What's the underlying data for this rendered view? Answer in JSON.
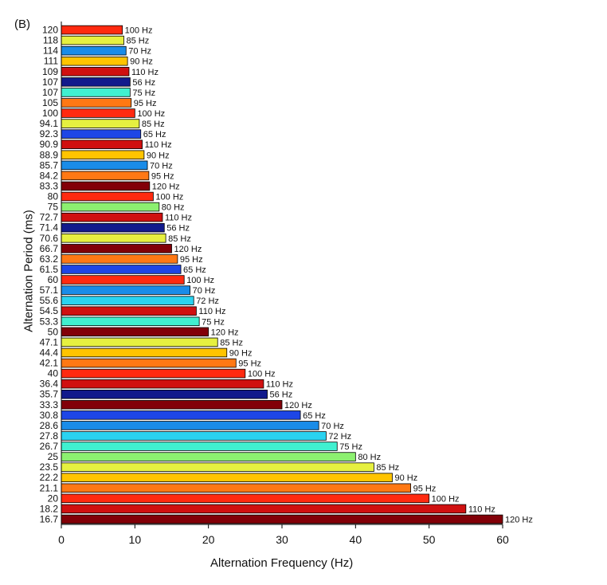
{
  "panel_label": "(B)",
  "chart_data": {
    "type": "bar",
    "orientation": "horizontal",
    "xlabel": "Alternation Frequency (Hz)",
    "ylabel": "Alternation Period (ms)",
    "xlim": [
      0,
      60
    ],
    "xticks": [
      "0",
      "10",
      "20",
      "30",
      "40",
      "50",
      "60"
    ],
    "grid": false,
    "colors": {
      "56 Hz": "#121a8c",
      "65 Hz": "#1e46e6",
      "70 Hz": "#1a8ce8",
      "72 Hz": "#2ad2f0",
      "75 Hz": "#40f0d0",
      "80 Hz": "#8cf070",
      "85 Hz": "#e6f040",
      "90 Hz": "#ffc400",
      "95 Hz": "#ff7814",
      "100 Hz": "#ff2a10",
      "110 Hz": "#d01010",
      "120 Hz": "#820008"
    },
    "bars": [
      {
        "period": "120",
        "frequency": 8.3,
        "label": "100 Hz"
      },
      {
        "period": "118",
        "frequency": 8.5,
        "label": "85 Hz"
      },
      {
        "period": "114",
        "frequency": 8.8,
        "label": "70 Hz"
      },
      {
        "period": "111",
        "frequency": 9.0,
        "label": "90 Hz"
      },
      {
        "period": "109",
        "frequency": 9.2,
        "label": "110 Hz"
      },
      {
        "period": "107",
        "frequency": 9.35,
        "label": "56 Hz"
      },
      {
        "period": "107",
        "frequency": 9.35,
        "label": "75 Hz"
      },
      {
        "period": "105",
        "frequency": 9.5,
        "label": "95 Hz"
      },
      {
        "period": "100",
        "frequency": 10.0,
        "label": "100 Hz"
      },
      {
        "period": "94.1",
        "frequency": 10.6,
        "label": "85 Hz"
      },
      {
        "period": "92.3",
        "frequency": 10.8,
        "label": "65 Hz"
      },
      {
        "period": "90.9",
        "frequency": 11.0,
        "label": "110 Hz"
      },
      {
        "period": "88.9",
        "frequency": 11.25,
        "label": "90 Hz"
      },
      {
        "period": "85.7",
        "frequency": 11.7,
        "label": "70 Hz"
      },
      {
        "period": "84.2",
        "frequency": 11.9,
        "label": "95 Hz"
      },
      {
        "period": "83.3",
        "frequency": 12.0,
        "label": "120 Hz"
      },
      {
        "period": "80",
        "frequency": 12.5,
        "label": "100 Hz"
      },
      {
        "period": "75",
        "frequency": 13.3,
        "label": "80 Hz"
      },
      {
        "period": "72.7",
        "frequency": 13.75,
        "label": "110 Hz"
      },
      {
        "period": "71.4",
        "frequency": 14.0,
        "label": "56 Hz"
      },
      {
        "period": "70.6",
        "frequency": 14.2,
        "label": "85 Hz"
      },
      {
        "period": "66.7",
        "frequency": 15.0,
        "label": "120 Hz"
      },
      {
        "period": "63.2",
        "frequency": 15.8,
        "label": "95 Hz"
      },
      {
        "period": "61.5",
        "frequency": 16.25,
        "label": "65 Hz"
      },
      {
        "period": "60",
        "frequency": 16.7,
        "label": "100 Hz"
      },
      {
        "period": "57.1",
        "frequency": 17.5,
        "label": "70 Hz"
      },
      {
        "period": "55.6",
        "frequency": 18.0,
        "label": "72 Hz"
      },
      {
        "period": "54.5",
        "frequency": 18.35,
        "label": "110 Hz"
      },
      {
        "period": "53.3",
        "frequency": 18.75,
        "label": "75 Hz"
      },
      {
        "period": "50",
        "frequency": 20.0,
        "label": "120 Hz"
      },
      {
        "period": "47.1",
        "frequency": 21.25,
        "label": "85 Hz"
      },
      {
        "period": "44.4",
        "frequency": 22.5,
        "label": "90 Hz"
      },
      {
        "period": "42.1",
        "frequency": 23.75,
        "label": "95 Hz"
      },
      {
        "period": "40",
        "frequency": 25.0,
        "label": "100 Hz"
      },
      {
        "period": "36.4",
        "frequency": 27.5,
        "label": "110 Hz"
      },
      {
        "period": "35.7",
        "frequency": 28.0,
        "label": "56 Hz"
      },
      {
        "period": "33.3",
        "frequency": 30.0,
        "label": "120 Hz"
      },
      {
        "period": "30.8",
        "frequency": 32.5,
        "label": "65 Hz"
      },
      {
        "period": "28.6",
        "frequency": 35.0,
        "label": "70 Hz"
      },
      {
        "period": "27.8",
        "frequency": 36.0,
        "label": "72 Hz"
      },
      {
        "period": "26.7",
        "frequency": 37.5,
        "label": "75 Hz"
      },
      {
        "period": "25",
        "frequency": 40.0,
        "label": "80 Hz"
      },
      {
        "period": "23.5",
        "frequency": 42.5,
        "label": "85 Hz"
      },
      {
        "period": "22.2",
        "frequency": 45.0,
        "label": "90 Hz"
      },
      {
        "period": "21.1",
        "frequency": 47.5,
        "label": "95 Hz"
      },
      {
        "period": "20",
        "frequency": 50.0,
        "label": "100 Hz"
      },
      {
        "period": "18.2",
        "frequency": 55.0,
        "label": "110 Hz"
      },
      {
        "period": "16.7",
        "frequency": 60.0,
        "label": "120 Hz"
      }
    ]
  }
}
